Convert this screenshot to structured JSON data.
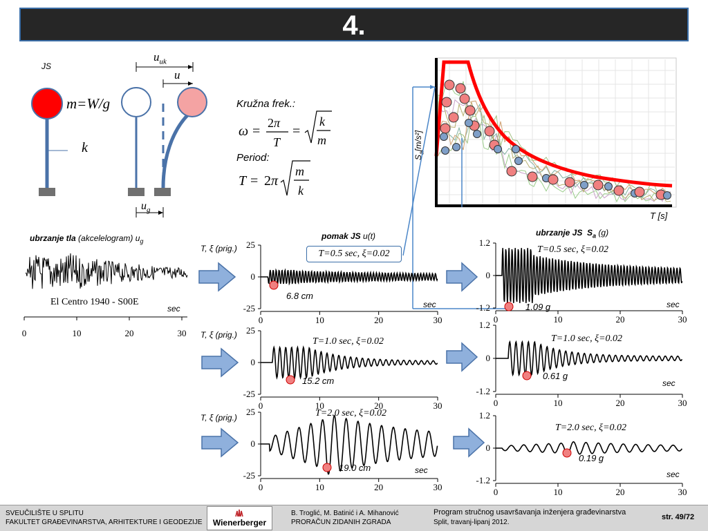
{
  "slide": {
    "title": "4.",
    "page": "str. 49/72"
  },
  "sdof": {
    "js_label": "JS",
    "mass_label": "m=W/g",
    "k_label": "k",
    "u_uk_label": "u",
    "u_uk_sub": "uk",
    "u_label": "u",
    "ug_label": "u",
    "ug_sub": "g"
  },
  "formulas": {
    "circ_freq_label": "Kružna frek.:",
    "period_label": "Period:"
  },
  "spectrum_inset": {
    "ylabel_main": "S",
    "ylabel_sub": "a",
    "ylabel_unit": "[m/s²]",
    "xlabel": "T [s]",
    "colors": {
      "envelope": "#ff0000",
      "point_red": "#f08080",
      "point_blue": "#7f9fc8"
    }
  },
  "ground": {
    "heading_bold": "ubrzanje tla",
    "heading_rest": "(akcelelogram) u",
    "heading_sub": "g",
    "record": "El Centro 1940 - S00E",
    "unit": "sec",
    "x_ticks": [
      "0",
      "10",
      "20",
      "30"
    ]
  },
  "displacement": {
    "heading_bold": "pomak JS",
    "heading_rest": "u(t)",
    "y_ticks": [
      "25",
      "0",
      "-25"
    ],
    "x_ticks": [
      "0",
      "10",
      "20",
      "30"
    ],
    "unit": "sec",
    "rows": [
      {
        "params_label": "T, ξ (prig.)",
        "case": "T=0.5 sec, ξ=0.02",
        "peak": "6.8 cm"
      },
      {
        "params_label": "T, ξ (prig.)",
        "case": "T=1.0 sec, ξ=0.02",
        "peak": "15.2 cm"
      },
      {
        "params_label": "T, ξ (prig.)",
        "case": "T=2.0 sec, ξ=0.02",
        "peak": "19.0 cm"
      }
    ]
  },
  "acceleration": {
    "heading_bold": "ubrzanje JS",
    "heading_sa": "S",
    "heading_sa_sub": "a",
    "heading_unit": "(g)",
    "y_ticks": [
      "1.2",
      "0",
      "-1.2"
    ],
    "x_ticks": [
      "0",
      "10",
      "20",
      "30"
    ],
    "unit": "sec",
    "rows": [
      {
        "case": "T=0.5 sec, ξ=0.02",
        "peak": "1.09 g"
      },
      {
        "case": "T=1.0 sec, ξ=0.02",
        "peak": "0.61 g"
      },
      {
        "case": "T=2.0 sec, ξ=0.02",
        "peak": "0.19 g"
      }
    ]
  },
  "footer": {
    "uni_line1": "SVEUČILIŠTE U SPLITU",
    "uni_line2": "FAKULTET GRAĐEVINARSTVA, ARHITEKTURE I GEODEZIJE",
    "logo": "Wienerberger",
    "authors_line1": "B. Troglić, M. Batinić i A. Mihanović",
    "authors_line2": "PRORAČUN ZIDANIH ZGRADA",
    "program_line1": "Program stručnog usavršavanja inženjera građevinarstva",
    "program_line2": "Split, travanj-lipanj 2012."
  }
}
